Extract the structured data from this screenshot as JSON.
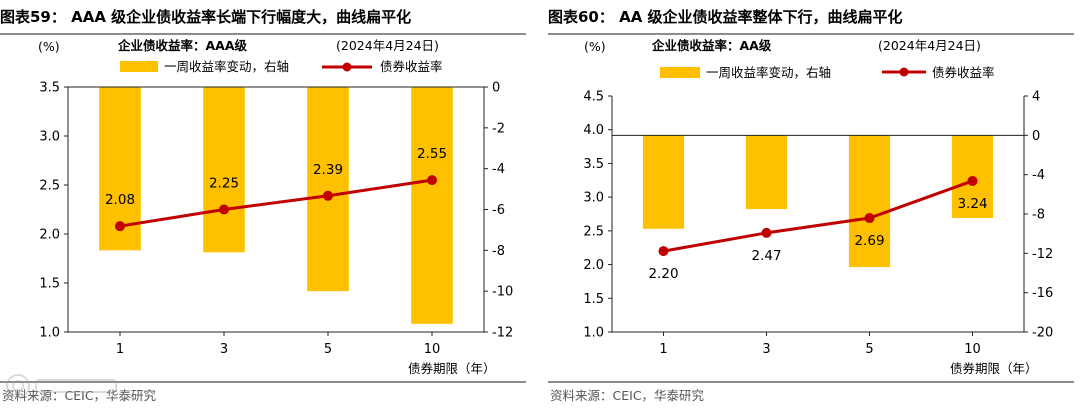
{
  "charts": [
    {
      "figure_title": "图表59： AAA 级企业债收益率长端下行幅度大，曲线扁平化",
      "source": "资料来源：CEIC，华泰研究",
      "unit_left": "(%)",
      "subtitle": "企业债收益率：AAA级",
      "date_note": "(2024年4月24日)",
      "legend_bar": "一周收益率变动，右轴",
      "legend_line": "债券收益率",
      "xlabel": "债券期限（年）",
      "bar_color": "#FFC000",
      "line_color": "#C00000"
    },
    {
      "figure_title": "图表60： AA 级企业债收益率整体下行，曲线扁平化",
      "source": "资料来源：CEIC，华泰研究",
      "unit_left": "(%)",
      "subtitle": "企业债收益率：AA级",
      "date_note": "(2024年4月24日)",
      "legend_bar": "一周收益率变动，右轴",
      "legend_line": "债券收益率",
      "xlabel": "债券期限（年）",
      "bar_color": "#FFC000",
      "line_color": "#C00000"
    }
  ],
  "chart_data": [
    {
      "type": "bar+line",
      "categories": [
        "1",
        "3",
        "5",
        "10"
      ],
      "bar_series": {
        "name": "一周收益率变动，右轴",
        "values": [
          -8.0,
          -8.1,
          -10.0,
          -11.6
        ],
        "axis": "right"
      },
      "line_series": {
        "name": "债券收益率",
        "values": [
          2.08,
          2.25,
          2.39,
          2.55
        ],
        "axis": "left"
      },
      "line_labels": [
        "2.08",
        "2.25",
        "2.39",
        "2.55"
      ],
      "left_ticks": [
        "1.0",
        "1.5",
        "2.0",
        "2.5",
        "3.0",
        "3.5"
      ],
      "right_ticks": [
        "-12",
        "-10",
        "-8",
        "-6",
        "-4",
        "-2",
        "0"
      ],
      "ylim_left": [
        1.0,
        3.5
      ],
      "ylim_right": [
        -12,
        0
      ],
      "xlabel": "债券期限（年）",
      "grid": false,
      "legend": "top"
    },
    {
      "type": "bar+line",
      "categories": [
        "1",
        "3",
        "5",
        "10"
      ],
      "bar_series": {
        "name": "一周收益率变动，右轴",
        "values": [
          -9.5,
          -7.5,
          -13.4,
          -8.4
        ],
        "axis": "right"
      },
      "line_series": {
        "name": "债券收益率",
        "values": [
          2.2,
          2.47,
          2.69,
          3.24
        ],
        "axis": "left"
      },
      "line_labels": [
        "2.20",
        "2.47",
        "2.69",
        "3.24"
      ],
      "left_ticks": [
        "1.0",
        "1.5",
        "2.0",
        "2.5",
        "3.0",
        "3.5",
        "4.0",
        "4.5"
      ],
      "right_ticks": [
        "-20",
        "-16",
        "-12",
        "-8",
        "-4",
        "0",
        "4"
      ],
      "ylim_left": [
        1.0,
        4.5
      ],
      "ylim_right": [
        -20,
        4
      ],
      "xlabel": "债券期限（年）",
      "grid": false,
      "legend": "top"
    }
  ]
}
